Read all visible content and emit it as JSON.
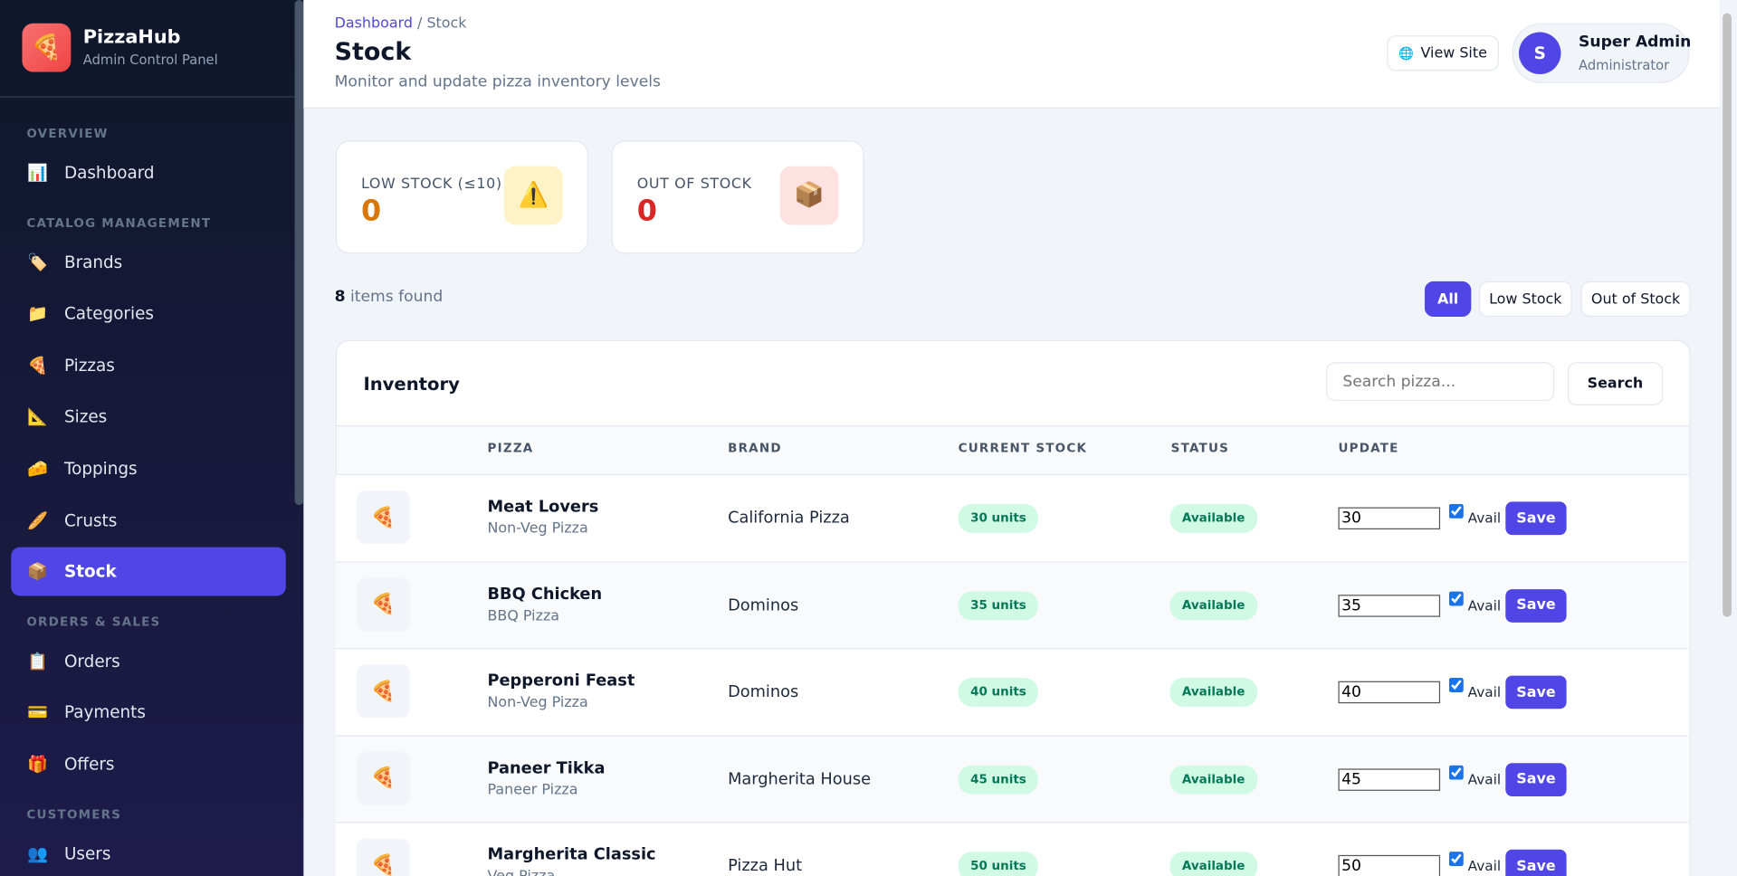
{
  "brand": {
    "logo": "🍕",
    "name": "PizzaHub",
    "tagline": "Admin Control Panel"
  },
  "nav": {
    "sections": [
      {
        "title": "OVERVIEW",
        "items": [
          {
            "icon": "📊",
            "label": "Dashboard"
          }
        ]
      },
      {
        "title": "CATALOG MANAGEMENT",
        "items": [
          {
            "icon": "🏷️",
            "label": "Brands"
          },
          {
            "icon": "📁",
            "label": "Categories"
          },
          {
            "icon": "🍕",
            "label": "Pizzas"
          },
          {
            "icon": "📐",
            "label": "Sizes"
          },
          {
            "icon": "🧀",
            "label": "Toppings"
          },
          {
            "icon": "🥖",
            "label": "Crusts"
          },
          {
            "icon": "📦",
            "label": "Stock"
          }
        ]
      },
      {
        "title": "ORDERS & SALES",
        "items": [
          {
            "icon": "📋",
            "label": "Orders"
          },
          {
            "icon": "💳",
            "label": "Payments"
          },
          {
            "icon": "🎁",
            "label": "Offers"
          }
        ]
      },
      {
        "title": "CUSTOMERS",
        "items": [
          {
            "icon": "👥",
            "label": "Users"
          }
        ]
      }
    ]
  },
  "header": {
    "breadcrumb": [
      "Dashboard",
      "Stock"
    ],
    "separator": "/",
    "title": "Stock",
    "subtitle": "Monitor and update pizza inventory levels",
    "view_site": {
      "icon": "🌐",
      "label": "View Site"
    },
    "user": {
      "initial": "S",
      "name": "Super Admin",
      "role": "Administrator"
    }
  },
  "stats": [
    {
      "label": "LOW STOCK (≤10)",
      "value": "0",
      "icon": "⚠️"
    },
    {
      "label": "OUT OF STOCK",
      "value": "0",
      "icon": "📦"
    }
  ],
  "results": {
    "count": "8",
    "text": "items found"
  },
  "filters": [
    "All",
    "Low Stock",
    "Out of Stock"
  ],
  "table": {
    "title": "Inventory",
    "search_placeholder": "Search pizza...",
    "search_button": "Search",
    "columns": [
      "PIZZA",
      "BRAND",
      "CURRENT STOCK",
      "STATUS",
      "UPDATE"
    ],
    "rows": [
      {
        "icon": "🍕",
        "name": "Meat Lovers",
        "category": "Non-Veg Pizza",
        "brand": "California Pizza",
        "stock": "30 units",
        "status": "Available",
        "update": "30",
        "avail": "Avail",
        "save": "Save"
      },
      {
        "icon": "🍕",
        "name": "BBQ Chicken",
        "category": "BBQ Pizza",
        "brand": "Dominos",
        "stock": "35 units",
        "status": "Available",
        "update": "35",
        "avail": "Avail",
        "save": "Save"
      },
      {
        "icon": "🍕",
        "name": "Pepperoni Feast",
        "category": "Non-Veg Pizza",
        "brand": "Dominos",
        "stock": "40 units",
        "status": "Available",
        "update": "40",
        "avail": "Avail",
        "save": "Save"
      },
      {
        "icon": "🍕",
        "name": "Paneer Tikka",
        "category": "Paneer Pizza",
        "brand": "Margherita House",
        "stock": "45 units",
        "status": "Available",
        "update": "45",
        "avail": "Avail",
        "save": "Save"
      },
      {
        "icon": "🍕",
        "name": "Margherita Classic",
        "category": "Veg Pizza",
        "brand": "Pizza Hut",
        "stock": "50 units",
        "status": "Available",
        "update": "50",
        "avail": "Avail",
        "save": "Save"
      }
    ]
  }
}
